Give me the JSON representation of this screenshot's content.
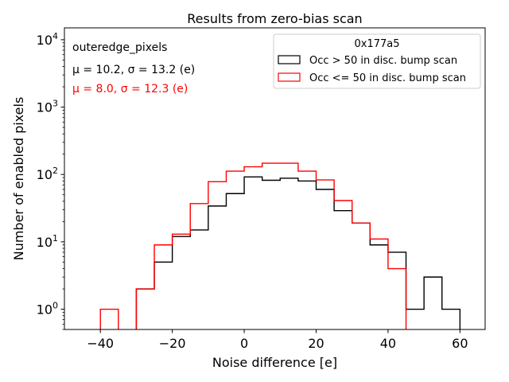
{
  "chart_data": {
    "type": "histogram",
    "title": "Results from zero-bias scan",
    "xlabel": "Noise difference [e]",
    "ylabel": "Number of enabled pixels",
    "xlim": [
      -50,
      67
    ],
    "ylim": [
      0.5,
      15000
    ],
    "yscale": "log",
    "x_ticks": [
      -40,
      -20,
      0,
      20,
      40,
      60
    ],
    "x_tick_labels": [
      "−40",
      "−20",
      "0",
      "20",
      "40",
      "60"
    ],
    "y_ticks": [
      {
        "value": 1,
        "base": "10",
        "exp": "0"
      },
      {
        "value": 10,
        "base": "10",
        "exp": "1"
      },
      {
        "value": 100,
        "base": "10",
        "exp": "2"
      },
      {
        "value": 1000,
        "base": "10",
        "exp": "3"
      },
      {
        "value": 10000,
        "base": "10",
        "exp": "4"
      }
    ],
    "bin_edges": [
      -50,
      -45,
      -40,
      -35,
      -30,
      -25,
      -20,
      -15,
      -10,
      -5,
      0,
      5,
      10,
      15,
      20,
      25,
      30,
      35,
      40,
      45,
      50,
      55,
      60,
      65
    ],
    "series": [
      {
        "name": "Occ > 50 in disc. bump scan",
        "color": "#000000",
        "values": [
          0,
          0,
          0,
          0,
          2,
          5,
          12,
          15,
          34,
          52,
          92,
          82,
          88,
          80,
          60,
          29,
          19,
          9,
          7,
          1,
          3,
          1,
          0
        ]
      },
      {
        "name": "Occ <= 50 in disc. bump scan",
        "color": "#ff0000",
        "values": [
          0,
          0,
          1,
          0,
          2,
          9,
          13,
          37,
          78,
          112,
          130,
          147,
          147,
          112,
          83,
          41,
          19,
          11,
          4,
          0,
          0,
          0,
          0
        ]
      }
    ],
    "annotations": [
      {
        "id": "region",
        "text": "outeredge_pixels",
        "color": "#000000"
      },
      {
        "id": "stats-black",
        "text": "μ = 10.2, σ = 13.2 (e)",
        "color": "#000000"
      },
      {
        "id": "stats-red",
        "text": "μ = 8.0, σ = 12.3 (e)",
        "color": "#ff0000"
      }
    ],
    "legend": {
      "title": "0x177a5",
      "position": "upper right",
      "entries": [
        "Occ > 50 in disc. bump scan",
        "Occ <= 50 in disc. bump scan"
      ]
    }
  }
}
